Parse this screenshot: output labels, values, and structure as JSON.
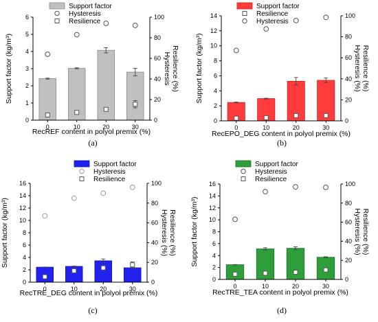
{
  "chart_data": [
    {
      "type": "bar",
      "panel_label": "(a)",
      "categories": [
        "0",
        "10",
        "20",
        "30"
      ],
      "xlabel": "RecREF content in polyol premix (%)",
      "ylabel": "Support factor (kg/m³)",
      "y2label_lines": [
        "Hysteresis",
        "Resilience (%)"
      ],
      "ylim": [
        0,
        6
      ],
      "yticks": [
        0,
        1,
        2,
        3,
        4,
        5,
        6
      ],
      "y2lim": [
        0,
        100
      ],
      "y2ticks": [
        0,
        20,
        40,
        60,
        80,
        100
      ],
      "colors": {
        "bar": "#c0c0c0",
        "bar_edge": "#8a8a8a",
        "hysteresis_edge": "#555555",
        "resilience_edge": "#555555"
      },
      "legend_labels": [
        "Support factor",
        "Hysteresis",
        "Resilience"
      ],
      "legend_order": [
        "bar",
        "hysteresis",
        "resilience"
      ],
      "series": [
        {
          "name": "Support factor",
          "axis": "left",
          "values": [
            2.42,
            3.02,
            4.07,
            2.8
          ],
          "errors": [
            0.03,
            0.03,
            0.15,
            0.22
          ]
        },
        {
          "name": "Hysteresis",
          "axis": "right",
          "marker": "circle",
          "values": [
            64,
            83,
            94,
            92
          ]
        },
        {
          "name": "Resilience",
          "axis": "right",
          "marker": "square",
          "values": [
            5,
            7.5,
            10.5,
            15.5
          ],
          "errors": [
            0,
            0,
            0,
            3.5
          ]
        }
      ]
    },
    {
      "type": "bar",
      "panel_label": "(b)",
      "categories": [
        "0",
        "10",
        "20",
        "30"
      ],
      "xlabel": "RecEPO_DEG content in polyol premix (%)",
      "ylabel": "Support factor (kg/m³)",
      "y2label_lines": [
        "Hysteresis (%)",
        "Resilience (%)"
      ],
      "ylim": [
        0,
        14
      ],
      "yticks": [
        0,
        2,
        4,
        6,
        8,
        10,
        12,
        14
      ],
      "y2lim": [
        0,
        100
      ],
      "y2ticks": [
        0,
        20,
        40,
        60,
        80,
        100
      ],
      "colors": {
        "bar": "#ff3b3b",
        "bar_edge": "#cc1f1f",
        "hysteresis_edge": "#555555",
        "resilience_edge": "#555555"
      },
      "legend_labels": [
        "Support factor",
        "Resilience",
        "Hysteresis"
      ],
      "legend_order": [
        "bar",
        "resilience",
        "hysteresis"
      ],
      "series": [
        {
          "name": "Support factor",
          "axis": "left",
          "values": [
            2.45,
            2.97,
            5.28,
            5.4
          ],
          "errors": [
            0.05,
            0.05,
            0.5,
            0.3
          ]
        },
        {
          "name": "Hysteresis",
          "axis": "right",
          "marker": "circle",
          "values": [
            67,
            87.5,
            95.5,
            98.5
          ]
        },
        {
          "name": "Resilience",
          "axis": "right",
          "marker": "square",
          "values": [
            2.5,
            3,
            5,
            5
          ]
        }
      ]
    },
    {
      "type": "bar",
      "panel_label": "(c)",
      "categories": [
        "0",
        "10",
        "20",
        "30"
      ],
      "xlabel": "RecTRE_DEG content in polyol premix (%)",
      "ylabel": "Support factor (kg/m³)",
      "y2label_lines": [
        "Hysteresis (%)",
        "Resilience (%)"
      ],
      "ylim": [
        0,
        16
      ],
      "yticks": [
        0,
        2,
        4,
        6,
        8,
        10,
        12,
        14,
        16
      ],
      "y2lim": [
        0,
        100
      ],
      "y2ticks": [
        0,
        20,
        40,
        60,
        80,
        100
      ],
      "colors": {
        "bar": "#2222ee",
        "bar_edge": "#1111aa",
        "hysteresis_edge": "#9a9a9a",
        "resilience_edge": "#555555"
      },
      "legend_labels": [
        "Support factor",
        "Hysteresis",
        "Resilience"
      ],
      "legend_order": [
        "bar",
        "hysteresis",
        "resilience"
      ],
      "series": [
        {
          "name": "Support factor",
          "axis": "left",
          "values": [
            2.43,
            2.56,
            3.46,
            2.33
          ],
          "errors": [
            0.03,
            0.05,
            0.3,
            0.04
          ]
        },
        {
          "name": "Hysteresis",
          "axis": "right",
          "marker": "circle",
          "values": [
            67,
            85,
            90,
            96
          ]
        },
        {
          "name": "Resilience",
          "axis": "right",
          "marker": "square",
          "values": [
            5.5,
            11.5,
            14.5,
            17.5
          ],
          "errors": [
            0,
            0,
            0,
            3
          ]
        }
      ]
    },
    {
      "type": "bar",
      "panel_label": "(d)",
      "categories": [
        "0",
        "10",
        "20",
        "30"
      ],
      "xlabel": "RecTRE_TEA content in polyol premix (%)",
      "ylabel": "Support factor (kg/m³)",
      "y2label_lines": [
        "Hysteresis (%)",
        "Resilience (%)"
      ],
      "ylim": [
        0,
        16
      ],
      "yticks": [
        0,
        2,
        4,
        6,
        8,
        10,
        12,
        14,
        16
      ],
      "y2lim": [
        0,
        100
      ],
      "y2ticks": [
        0,
        20,
        40,
        60,
        80,
        100
      ],
      "colors": {
        "bar": "#2e9e3a",
        "bar_edge": "#1e6e28",
        "hysteresis_edge": "#555555",
        "resilience_edge": "#555555"
      },
      "legend_labels": [
        "Support factor",
        "Hysteresis",
        "Resilience"
      ],
      "legend_order": [
        "bar",
        "hysteresis",
        "resilience"
      ],
      "series": [
        {
          "name": "Support factor",
          "axis": "left",
          "values": [
            2.47,
            5.12,
            5.22,
            3.72
          ],
          "errors": [
            0.03,
            0.2,
            0.25,
            0.08
          ]
        },
        {
          "name": "Hysteresis",
          "axis": "right",
          "marker": "circle",
          "values": [
            63,
            92,
            97,
            96.5
          ]
        },
        {
          "name": "Resilience",
          "axis": "right",
          "marker": "square",
          "values": [
            5.5,
            6.5,
            7.5,
            10
          ]
        }
      ]
    }
  ]
}
